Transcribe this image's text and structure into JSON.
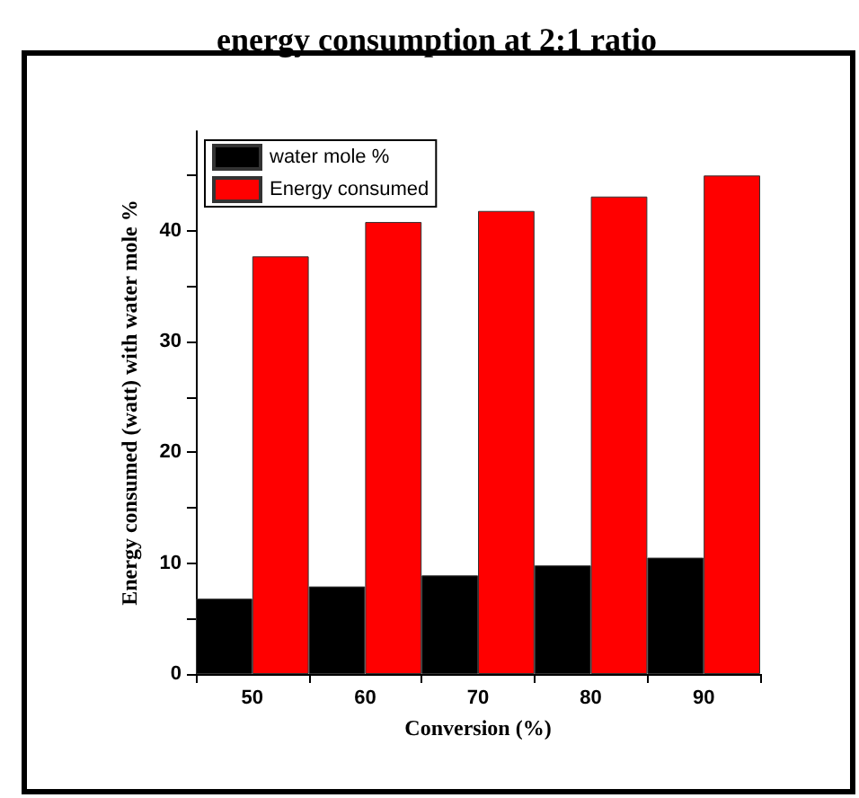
{
  "chart_data": {
    "type": "bar",
    "title": "energy consumption at 2:1 ratio",
    "xlabel": "Conversion (%)",
    "ylabel": "Energy consumed (watt) with water mole %",
    "categories": [
      "50",
      "60",
      "70",
      "80",
      "90"
    ],
    "series": [
      {
        "name": "water mole %",
        "color": "#000000",
        "values": [
          6.8,
          7.9,
          8.9,
          9.8,
          10.5
        ]
      },
      {
        "name": "Energy consumed",
        "color": "#ff0000",
        "values": [
          37.7,
          40.8,
          41.8,
          43.1,
          45.0
        ]
      }
    ],
    "ylim": [
      0,
      49
    ],
    "yticks": [
      0,
      {
        "value": 5,
        "label": null
      },
      10,
      {
        "value": 15,
        "label": null
      },
      20,
      {
        "value": 25,
        "label": null
      },
      30,
      {
        "value": 35,
        "label": null
      },
      40,
      {
        "value": 45,
        "label": null
      }
    ],
    "legend": "top left",
    "grid": false
  }
}
